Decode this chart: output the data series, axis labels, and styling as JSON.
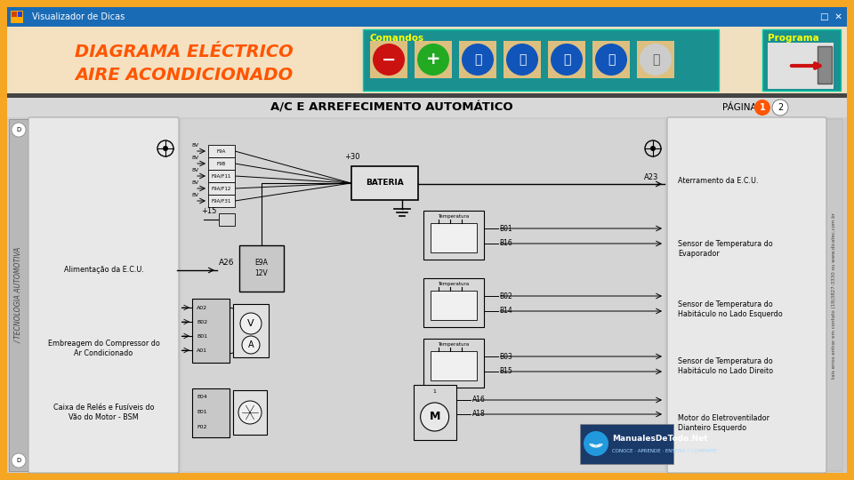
{
  "outer_border_color": "#f5a623",
  "window_bar_color": "#1a6bb5",
  "window_title": "Visualizador de Dicas",
  "main_title_line1": "DIAGRAMA ELÉCTRICO",
  "main_title_line2": "AIRE ACONDICIONADO",
  "main_title_color": "#ff5500",
  "main_title_bg": "#f5e0c0",
  "comandos_label": "Comandos",
  "programa_label": "Programa",
  "toolbar_bg": "#1a9090",
  "diagram_title": "A/C E ARREFECIMENTO AUTOMÁTICO",
  "pagina_label": "PÁGINA",
  "diagram_title_bg": "#e0e0e0",
  "diagram_bg": "#c8c8c8",
  "left_panel_bg": "#d8d8d8",
  "left_panel_light": "#e8e8e8",
  "right_panel_bg": "#d8d8d8",
  "center_diagram_bg": "#d0d0d0",
  "side_text": "/ TECNOLOGIA AUTOMOTIVA",
  "left_labels": [
    "Alimentação da E.C.U.",
    "Embreagem do Compressor do\nAr Condicionado",
    "Caixa de Relés e Fusíveis do\nVão do Motor - BSM"
  ],
  "right_labels": [
    "Aterramento da E.C.U.",
    "Sensor de Temperatura do\nEvaporador",
    "Sensor de Temperatura do\nHabitáculo no Lado Esquerdo",
    "Sensor de Temperatura do\nHabitáculo no Lado Direito",
    "Motor do Eletroventilador\nDianteiro Esquerdo"
  ],
  "battery_label": "BATERIA",
  "right_side_text": "tais erros entrar em contato (19)3827-3330 ou www.dicatec.com.br",
  "watermark": "ManualesDeTodo.Net",
  "watermark_sub": "CONOCE · APRENDE · ENSÉÑA Y COMPARTE",
  "page1_color": "#ff5500",
  "page2_color": "#ffffff"
}
